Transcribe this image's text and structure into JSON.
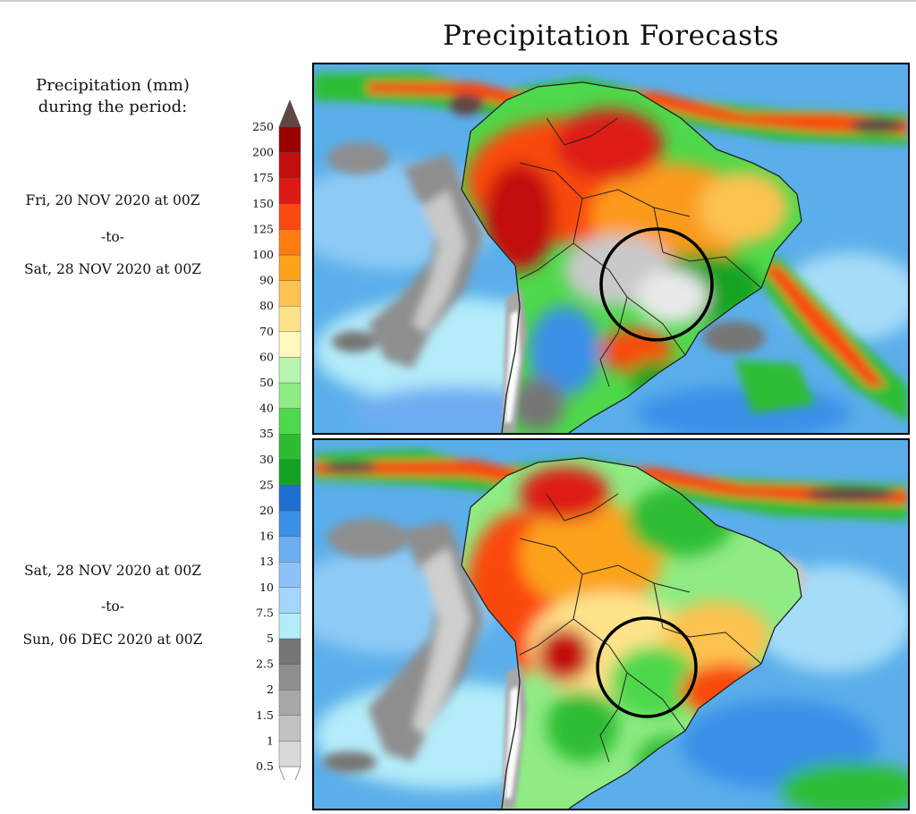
{
  "title": "Precipitation Forecasts",
  "legend": {
    "heading_line1": "Precipitation (mm)",
    "heading_line2": "during the period:",
    "levels": [
      "0.5",
      "1",
      "1.5",
      "2",
      "2.5",
      "5",
      "7.5",
      "10",
      "13",
      "16",
      "20",
      "25",
      "30",
      "35",
      "40",
      "50",
      "60",
      "70",
      "80",
      "90",
      "100",
      "125",
      "150",
      "175",
      "200",
      "250"
    ],
    "colors": [
      "#ffffff",
      "#d9d9d9",
      "#c2c2c2",
      "#a8a8a8",
      "#8e8e8e",
      "#767676",
      "#b4ecf9",
      "#a4d6fb",
      "#8dc3f6",
      "#6cadf1",
      "#3b90e8",
      "#1f6fd0",
      "#13a324",
      "#2dbd34",
      "#4ed84b",
      "#8feb83",
      "#b8f5b0",
      "#fff9bd",
      "#ffe38b",
      "#fdc250",
      "#fca31c",
      "#ff7c10",
      "#fa4a10",
      "#dd1a16",
      "#c20d0d",
      "#990000",
      "#5e4645"
    ]
  },
  "periods": [
    {
      "from": "Fri, 20 NOV 2020 at 00Z",
      "to_word": "-to-",
      "to": "Sat, 28 NOV 2020 at 00Z"
    },
    {
      "from": "Sat, 28 NOV 2020 at 00Z",
      "to_word": "-to-",
      "to": "Sun, 06 DEC 2020 at 00Z"
    }
  ],
  "maps": [
    {
      "name": "Forecast map period 1",
      "region": "South America"
    },
    {
      "name": "Forecast map period 2",
      "region": "South America"
    }
  ]
}
